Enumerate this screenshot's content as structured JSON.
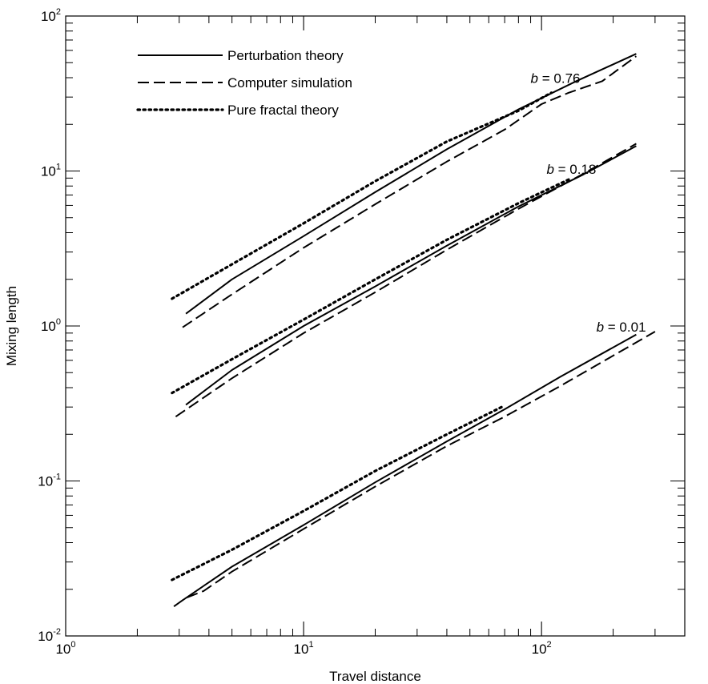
{
  "chart_data": {
    "type": "line",
    "title": "",
    "xlabel": "Travel distance",
    "ylabel": "Mixing length",
    "x_scale": "log",
    "y_scale": "log",
    "xlim": [
      1,
      400
    ],
    "ylim": [
      0.01,
      100
    ],
    "grid": false,
    "legend_position": "top-left",
    "x_ticks": [
      {
        "value": 1,
        "base": "10",
        "exp": "0"
      },
      {
        "value": 10,
        "base": "10",
        "exp": "1"
      },
      {
        "value": 100,
        "base": "10",
        "exp": "2"
      }
    ],
    "y_ticks": [
      {
        "value": 0.01,
        "base": "10",
        "exp": "-2"
      },
      {
        "value": 0.1,
        "base": "10",
        "exp": "-1"
      },
      {
        "value": 1,
        "base": "10",
        "exp": "0"
      },
      {
        "value": 10,
        "base": "10",
        "exp": "1"
      },
      {
        "value": 100,
        "base": "10",
        "exp": "2"
      }
    ],
    "legend": [
      {
        "label": "Perturbation theory",
        "style": "solid"
      },
      {
        "label": "Computer simulation",
        "style": "dashed"
      },
      {
        "label": "Pure fractal theory",
        "style": "dotted"
      }
    ],
    "annotations": [
      {
        "var": "b",
        "text": " = 0.76",
        "x": 90,
        "y": 37
      },
      {
        "var": "b",
        "text": " = 0.18",
        "x": 105,
        "y": 9.6
      },
      {
        "var": "b",
        "text": " = 0.01",
        "x": 170,
        "y": 0.92
      }
    ],
    "series": [
      {
        "group": "b = 0.76",
        "style": "solid",
        "x": [
          3.2,
          5,
          10,
          20,
          40,
          80,
          140,
          250
        ],
        "y": [
          1.2,
          2.0,
          3.8,
          7.3,
          13.8,
          25,
          38,
          57
        ]
      },
      {
        "group": "b = 0.76",
        "style": "dashed",
        "x": [
          3.1,
          5,
          10,
          20,
          40,
          70,
          100,
          130,
          180,
          250
        ],
        "y": [
          0.98,
          1.6,
          3.2,
          6.1,
          11.5,
          18.5,
          27,
          32,
          38,
          55
        ]
      },
      {
        "group": "b = 0.76",
        "style": "dotted",
        "x": [
          2.8,
          5,
          10,
          20,
          40,
          80,
          110
        ],
        "y": [
          1.5,
          2.5,
          4.6,
          8.6,
          15.5,
          24.5,
          32
        ]
      },
      {
        "group": "b = 0.18",
        "style": "solid",
        "x": [
          3.2,
          5,
          10,
          20,
          40,
          80,
          150,
          250
        ],
        "y": [
          0.31,
          0.52,
          1.0,
          1.8,
          3.3,
          5.9,
          9.5,
          14.5
        ]
      },
      {
        "group": "b = 0.18",
        "style": "dashed",
        "x": [
          2.9,
          5,
          10,
          20,
          40,
          80,
          150,
          250
        ],
        "y": [
          0.26,
          0.46,
          0.9,
          1.65,
          3.1,
          5.7,
          9.6,
          15
        ]
      },
      {
        "group": "b = 0.18",
        "style": "dotted",
        "x": [
          2.8,
          5,
          10,
          20,
          40,
          80,
          130
        ],
        "y": [
          0.37,
          0.61,
          1.1,
          2.0,
          3.6,
          6.2,
          8.8
        ]
      },
      {
        "group": "b = 0.01",
        "style": "solid",
        "x": [
          3.1,
          5,
          10,
          20,
          40,
          70,
          120,
          250
        ],
        "y": [
          0.017,
          0.028,
          0.052,
          0.098,
          0.18,
          0.29,
          0.47,
          0.88
        ]
      },
      {
        "group": "b = 0.01",
        "style": "dashed",
        "x": [
          2.85,
          3.2,
          3.8,
          5,
          10,
          20,
          40,
          70,
          120,
          300
        ],
        "y": [
          0.0155,
          0.0176,
          0.0195,
          0.026,
          0.049,
          0.092,
          0.168,
          0.26,
          0.41,
          0.92
        ]
      },
      {
        "group": "b = 0.01",
        "style": "dotted",
        "x": [
          2.8,
          5,
          10,
          20,
          40,
          68
        ],
        "y": [
          0.023,
          0.036,
          0.064,
          0.116,
          0.2,
          0.3
        ]
      }
    ]
  }
}
